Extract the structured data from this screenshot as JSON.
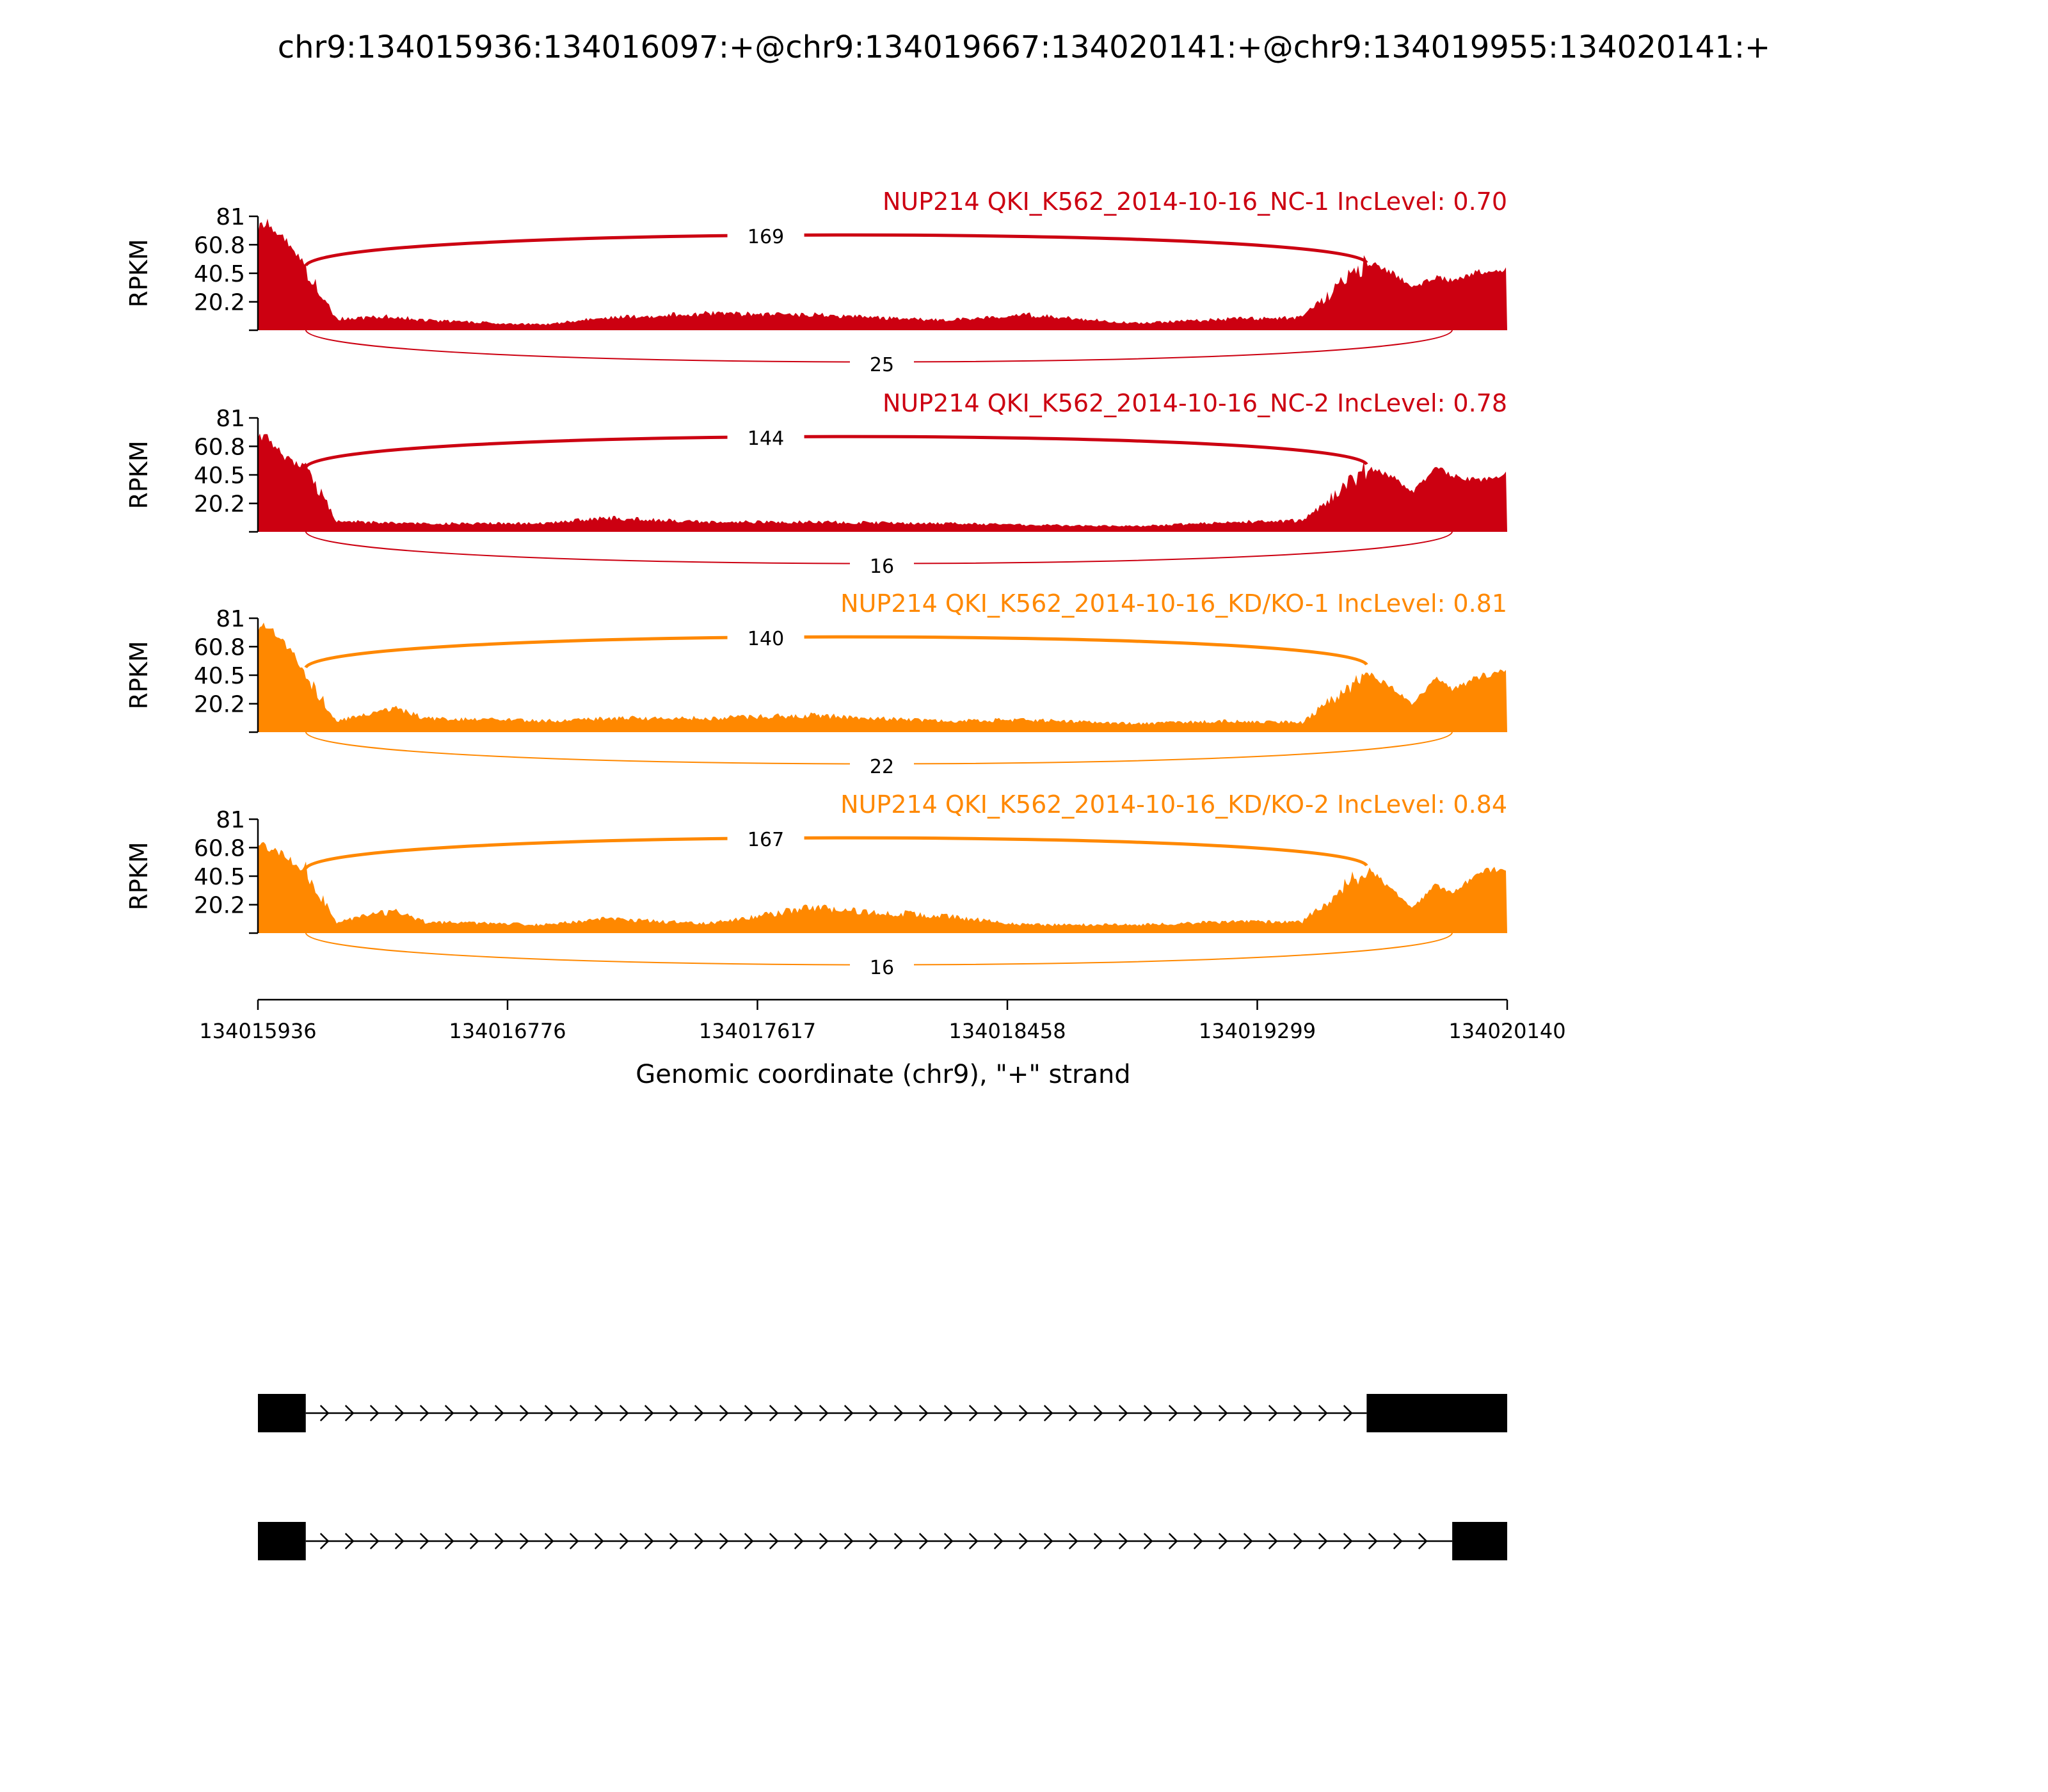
{
  "title": "chr9:134015936:134016097:+@chr9:134019667:134020141:+@chr9:134019955:134020141:+",
  "chart_data": {
    "type": "area",
    "title": "chr9:134015936:134016097:+@chr9:134019667:134020141:+@chr9:134019955:134020141:+",
    "xlabel": "Genomic coordinate (chr9), \"+\" strand",
    "ylabel": "RPKM",
    "xlim": [
      134015936,
      134020140
    ],
    "ylim": [
      0,
      81
    ],
    "yticks": [
      20.2,
      40.5,
      60.8,
      81
    ],
    "xticks": [
      134015936,
      134016776,
      134017617,
      134018458,
      134019299,
      134020140
    ],
    "grid": false,
    "upstream_exon": [
      134015936,
      134016097
    ],
    "inclusion_exon": [
      134019667,
      134020141
    ],
    "skipping_exon": [
      134019955,
      134020141
    ],
    "series": [
      {
        "name": "NUP214 QKI_K562_2014-10-16_NC-1 IncLevel: 0.70",
        "color": "#cc0011",
        "inclusion_junction_reads": "169",
        "skipping_junction_reads": "25",
        "coverage": [
          {
            "x": 134015936,
            "y": 70
          },
          {
            "x": 134015960,
            "y": 78
          },
          {
            "x": 134016000,
            "y": 68
          },
          {
            "x": 134016050,
            "y": 60
          },
          {
            "x": 134016097,
            "y": 45
          },
          {
            "x": 134016200,
            "y": 8
          },
          {
            "x": 134016400,
            "y": 10
          },
          {
            "x": 134016500,
            "y": 7
          },
          {
            "x": 134016900,
            "y": 4
          },
          {
            "x": 134017100,
            "y": 9
          },
          {
            "x": 134017450,
            "y": 12
          },
          {
            "x": 134017800,
            "y": 11
          },
          {
            "x": 134018250,
            "y": 7
          },
          {
            "x": 134018520,
            "y": 11
          },
          {
            "x": 134018900,
            "y": 5
          },
          {
            "x": 134019200,
            "y": 8
          },
          {
            "x": 134019450,
            "y": 9
          },
          {
            "x": 134019667,
            "y": 48
          },
          {
            "x": 134019750,
            "y": 42
          },
          {
            "x": 134019820,
            "y": 30
          },
          {
            "x": 134019900,
            "y": 38
          },
          {
            "x": 134019955,
            "y": 35
          },
          {
            "x": 134020050,
            "y": 42
          },
          {
            "x": 134020140,
            "y": 44
          }
        ]
      },
      {
        "name": "NUP214 QKI_K562_2014-10-16_NC-2 IncLevel: 0.78",
        "color": "#cc0011",
        "inclusion_junction_reads": "144",
        "skipping_junction_reads": "16",
        "coverage": [
          {
            "x": 134015936,
            "y": 65
          },
          {
            "x": 134015960,
            "y": 72
          },
          {
            "x": 134016000,
            "y": 58
          },
          {
            "x": 134016050,
            "y": 50
          },
          {
            "x": 134016097,
            "y": 46
          },
          {
            "x": 134016200,
            "y": 8
          },
          {
            "x": 134016400,
            "y": 6
          },
          {
            "x": 134016500,
            "y": 6
          },
          {
            "x": 134016900,
            "y": 6
          },
          {
            "x": 134017100,
            "y": 10
          },
          {
            "x": 134017450,
            "y": 7
          },
          {
            "x": 134017800,
            "y": 7
          },
          {
            "x": 134018250,
            "y": 6
          },
          {
            "x": 134018520,
            "y": 5
          },
          {
            "x": 134018900,
            "y": 4
          },
          {
            "x": 134019200,
            "y": 7
          },
          {
            "x": 134019450,
            "y": 8
          },
          {
            "x": 134019667,
            "y": 45
          },
          {
            "x": 134019750,
            "y": 40
          },
          {
            "x": 134019820,
            "y": 28
          },
          {
            "x": 134019900,
            "y": 45
          },
          {
            "x": 134019955,
            "y": 40
          },
          {
            "x": 134020050,
            "y": 36
          },
          {
            "x": 134020140,
            "y": 41
          }
        ]
      },
      {
        "name": "NUP214 QKI_K562_2014-10-16_KD/KO-1 IncLevel: 0.81",
        "color": "#ff8800",
        "inclusion_junction_reads": "140",
        "skipping_junction_reads": "22",
        "coverage": [
          {
            "x": 134015936,
            "y": 72
          },
          {
            "x": 134015960,
            "y": 78
          },
          {
            "x": 134016000,
            "y": 70
          },
          {
            "x": 134016050,
            "y": 58
          },
          {
            "x": 134016097,
            "y": 42
          },
          {
            "x": 134016200,
            "y": 8
          },
          {
            "x": 134016400,
            "y": 18
          },
          {
            "x": 134016500,
            "y": 10
          },
          {
            "x": 134016900,
            "y": 8
          },
          {
            "x": 134017100,
            "y": 10
          },
          {
            "x": 134017450,
            "y": 10
          },
          {
            "x": 134017800,
            "y": 12
          },
          {
            "x": 134018250,
            "y": 8
          },
          {
            "x": 134018520,
            "y": 9
          },
          {
            "x": 134018900,
            "y": 6
          },
          {
            "x": 134019200,
            "y": 8
          },
          {
            "x": 134019450,
            "y": 7
          },
          {
            "x": 134019667,
            "y": 42
          },
          {
            "x": 134019750,
            "y": 32
          },
          {
            "x": 134019820,
            "y": 20
          },
          {
            "x": 134019900,
            "y": 38
          },
          {
            "x": 134019955,
            "y": 30
          },
          {
            "x": 134020050,
            "y": 40
          },
          {
            "x": 134020140,
            "y": 44
          }
        ]
      },
      {
        "name": "NUP214 QKI_K562_2014-10-16_KD/KO-2 IncLevel: 0.84",
        "color": "#ff8800",
        "inclusion_junction_reads": "167",
        "skipping_junction_reads": "16",
        "coverage": [
          {
            "x": 134015936,
            "y": 60
          },
          {
            "x": 134015960,
            "y": 62
          },
          {
            "x": 134016000,
            "y": 58
          },
          {
            "x": 134016050,
            "y": 52
          },
          {
            "x": 134016097,
            "y": 44
          },
          {
            "x": 134016200,
            "y": 8
          },
          {
            "x": 134016400,
            "y": 16
          },
          {
            "x": 134016500,
            "y": 8
          },
          {
            "x": 134016900,
            "y": 6
          },
          {
            "x": 134017100,
            "y": 10
          },
          {
            "x": 134017450,
            "y": 7
          },
          {
            "x": 134017800,
            "y": 18
          },
          {
            "x": 134018250,
            "y": 12
          },
          {
            "x": 134018520,
            "y": 6
          },
          {
            "x": 134018900,
            "y": 6
          },
          {
            "x": 134019200,
            "y": 8
          },
          {
            "x": 134019450,
            "y": 8
          },
          {
            "x": 134019667,
            "y": 46
          },
          {
            "x": 134019750,
            "y": 32
          },
          {
            "x": 134019820,
            "y": 18
          },
          {
            "x": 134019900,
            "y": 34
          },
          {
            "x": 134019955,
            "y": 28
          },
          {
            "x": 134020050,
            "y": 44
          },
          {
            "x": 134020140,
            "y": 46
          }
        ]
      }
    ],
    "isoforms": [
      {
        "exons": [
          [
            134015936,
            134016097
          ],
          [
            134019667,
            134020141
          ]
        ]
      },
      {
        "exons": [
          [
            134015936,
            134016097
          ],
          [
            134019955,
            134020141
          ]
        ]
      }
    ]
  }
}
